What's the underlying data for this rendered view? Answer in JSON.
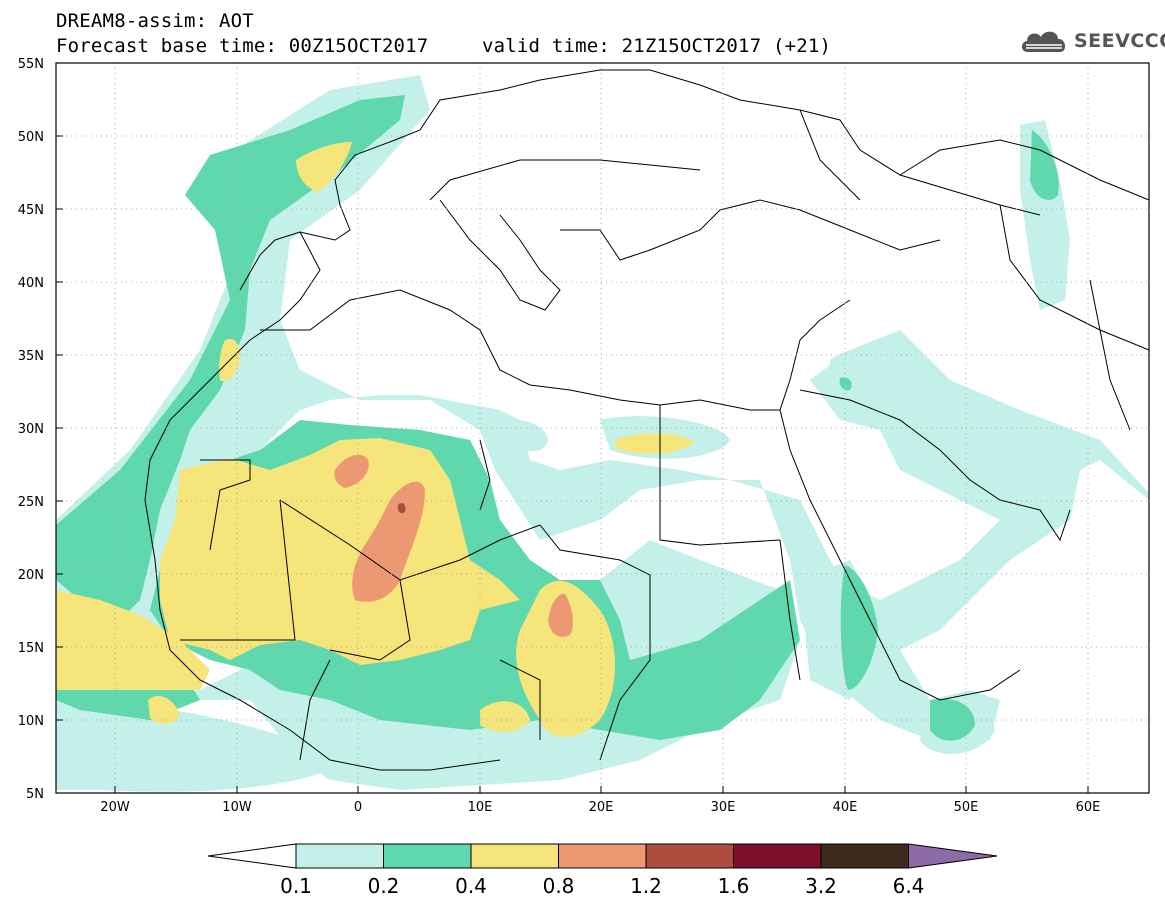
{
  "header": {
    "title": "DREAM8-assim: AOT",
    "base_time": "Forecast base time: 00Z15OCT2017",
    "valid_time": "valid time: 21Z15OCT2017 (+21)"
  },
  "logo": {
    "text": "SEEVCCC",
    "icon": "cloud-icon"
  },
  "map": {
    "lon_labels": [
      "20W",
      "10W",
      "0",
      "10E",
      "20E",
      "30E",
      "40E",
      "50E",
      "60E"
    ],
    "lat_labels": [
      "55N",
      "50N",
      "45N",
      "40N",
      "35N",
      "30N",
      "25N",
      "20N",
      "15N",
      "10N",
      "5N"
    ],
    "grid": "dotted"
  },
  "colorbar": {
    "labels": [
      "0.1",
      "0.2",
      "0.4",
      "0.8",
      "1.2",
      "1.6",
      "3.2",
      "6.4"
    ],
    "colors": [
      "#ffffff",
      "#c4f0ea",
      "#5ed8ac",
      "#f5e57a",
      "#ec9873",
      "#ab4c3e",
      "#7d0e2c",
      "#3e2a1a",
      "#8c6ba6"
    ]
  },
  "colors": {
    "c1": "#c4f0ea",
    "c2": "#5ed8ac",
    "c3": "#f5e57a",
    "c4": "#ec9873",
    "c5": "#ab4c3e"
  }
}
